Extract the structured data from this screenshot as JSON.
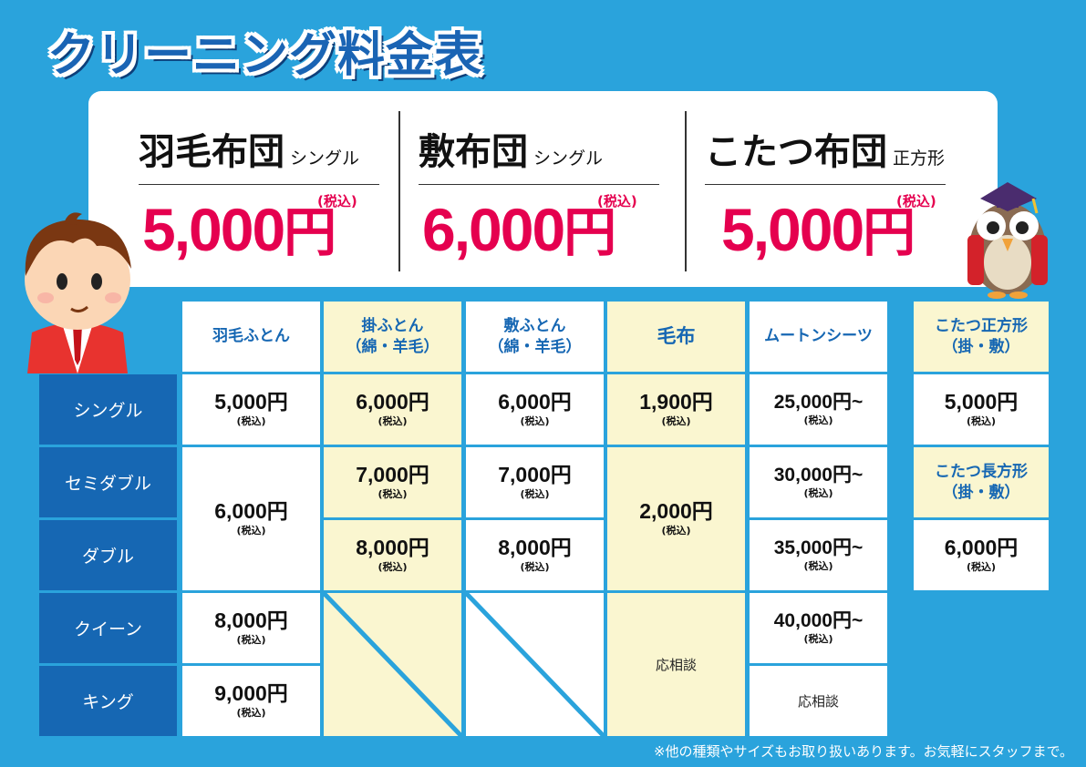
{
  "page_title": "クリーニング料金表",
  "featured": [
    {
      "name": "羽毛布団",
      "size": "シングル",
      "price": "5,000",
      "yen": "円",
      "tax": "(税込)"
    },
    {
      "name": "敷布団",
      "size": "シングル",
      "price": "6,000",
      "yen": "円",
      "tax": "(税込)"
    },
    {
      "name": "こたつ布団",
      "size": "正方形",
      "price": "5,000",
      "yen": "円",
      "tax": "(税込)"
    }
  ],
  "table": {
    "columns": [
      {
        "line1": "羽毛ふとん",
        "line2": ""
      },
      {
        "line1": "掛ふとん",
        "line2": "（綿・羊毛）"
      },
      {
        "line1": "敷ふとん",
        "line2": "（綿・羊毛）"
      },
      {
        "line1": "毛布",
        "line2": ""
      },
      {
        "line1": "ムートンシーツ",
        "line2": ""
      }
    ],
    "rows": [
      "シングル",
      "セミダブル",
      "ダブル",
      "クイーン",
      "キング"
    ],
    "tax": "(税込)",
    "consult": "応相談",
    "prices": {
      "down_single": "5,000円",
      "down_semi_double": "6,000円",
      "down_queen": "8,000円",
      "down_king": "9,000円",
      "kake_single": "6,000円",
      "kake_semi": "7,000円",
      "kake_double": "8,000円",
      "shiki_single": "6,000円",
      "shiki_semi": "7,000円",
      "shiki_double": "8,000円",
      "blanket_single": "1,900円",
      "blanket_semi_double": "2,000円",
      "mouton_single": "25,000円~",
      "mouton_semi": "30,000円~",
      "mouton_double": "35,000円~",
      "mouton_queen": "40,000円~"
    }
  },
  "kotatsu": {
    "square_title": "こたつ正方形",
    "square_sub": "（掛・敷）",
    "square_price": "5,000円",
    "rect_title": "こたつ長方形",
    "rect_sub": "（掛・敷）",
    "rect_price": "6,000円"
  },
  "footnote": "※他の種類やサイズもお取り扱いあります。お気軽にスタッフまで。",
  "colors": {
    "background": "#2aa3dc",
    "accent_red": "#e5004f",
    "navy": "#1667b3",
    "cream": "#faf6d0"
  }
}
